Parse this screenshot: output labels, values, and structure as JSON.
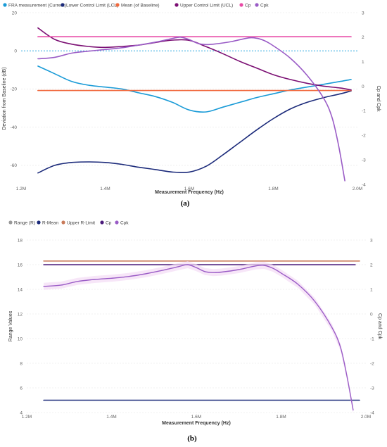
{
  "chart_data": [
    {
      "type": "line",
      "panel_label": "(a)",
      "legend": [
        "FRA measurement (Current)",
        "Lower Control Limit (LCL)",
        "Mean (of Baseline)",
        "Upper Control Limit (UCL)",
        "Cp",
        "Cpk"
      ],
      "xlabel": "Measurement Frequency (Hz)",
      "ylabel": "Deviation from Baseline (dB)",
      "y2label": "Cp and Cpk",
      "xlim": [
        1200000,
        2000000
      ],
      "ylim": [
        -70,
        20
      ],
      "y2lim": [
        -4,
        3
      ],
      "xticks": [
        {
          "v": 1200000,
          "label": "1.2M"
        },
        {
          "v": 1400000,
          "label": "1.4M"
        },
        {
          "v": 1600000,
          "label": "1.6M"
        },
        {
          "v": 1800000,
          "label": "1.8M"
        },
        {
          "v": 2000000,
          "label": "2.0M"
        }
      ],
      "yticks": [
        {
          "v": 20,
          "label": "20"
        },
        {
          "v": 0,
          "label": "0"
        },
        {
          "v": -20,
          "label": "-20"
        },
        {
          "v": -40,
          "label": "-40"
        },
        {
          "v": -60,
          "label": "-60"
        }
      ],
      "y2ticks": [
        {
          "v": 3,
          "label": "3"
        },
        {
          "v": 2,
          "label": "2"
        },
        {
          "v": 1,
          "label": "1"
        },
        {
          "v": 0,
          "label": "0"
        },
        {
          "v": -1,
          "label": "-1"
        },
        {
          "v": -2,
          "label": "-2"
        },
        {
          "v": -3,
          "label": "-3"
        },
        {
          "v": -4,
          "label": "-4"
        }
      ],
      "hline": {
        "y": 0,
        "color": "#2aa7e0",
        "style": "dotted"
      },
      "series": [
        {
          "name": "FRA measurement (Current)",
          "color": "#1a9bd7",
          "axis": "left",
          "x": [
            1240000,
            1280000,
            1320000,
            1360000,
            1400000,
            1440000,
            1480000,
            1520000,
            1560000,
            1600000,
            1640000,
            1680000,
            1720000,
            1760000,
            1800000,
            1840000,
            1880000,
            1920000,
            1960000,
            1985000
          ],
          "y": [
            -8,
            -12,
            -16,
            -18,
            -19,
            -20,
            -22,
            -24,
            -27,
            -31,
            -32,
            -29.5,
            -27,
            -24.5,
            -22.5,
            -20.5,
            -19,
            -17.5,
            -16,
            -15
          ]
        },
        {
          "name": "Lower Control Limit (LCL)",
          "color": "#1b2a7a",
          "axis": "left",
          "x": [
            1240000,
            1280000,
            1320000,
            1360000,
            1400000,
            1440000,
            1480000,
            1520000,
            1560000,
            1600000,
            1640000,
            1680000,
            1720000,
            1760000,
            1800000,
            1840000,
            1880000,
            1920000,
            1960000,
            1985000
          ],
          "y": [
            -64,
            -60,
            -58.5,
            -58.2,
            -58.5,
            -59.5,
            -61,
            -62.2,
            -63.5,
            -63.5,
            -60.5,
            -54.5,
            -48,
            -41.5,
            -35.5,
            -30.5,
            -27,
            -24.5,
            -22.5,
            -21
          ]
        },
        {
          "name": "Mean (of Baseline)",
          "color": "#f0693e",
          "axis": "left",
          "x": [
            1240000,
            1985000
          ],
          "y": [
            -20.8,
            -20.8
          ]
        },
        {
          "name": "Upper Control Limit (UCL)",
          "color": "#7b0f73",
          "axis": "left",
          "x": [
            1240000,
            1280000,
            1320000,
            1360000,
            1400000,
            1440000,
            1480000,
            1520000,
            1560000,
            1600000,
            1640000,
            1680000,
            1720000,
            1760000,
            1800000,
            1840000,
            1880000,
            1920000,
            1960000,
            1985000
          ],
          "y": [
            12,
            6,
            3.5,
            2.3,
            1.8,
            2.3,
            3,
            4.4,
            5.6,
            5.5,
            2.2,
            -1.5,
            -5.5,
            -9,
            -12.5,
            -15,
            -17,
            -18.5,
            -19.5,
            -20.5
          ]
        },
        {
          "name": "Cp",
          "color": "#e84aa6",
          "axis": "right",
          "x": [
            1240000,
            1985000
          ],
          "y": [
            2.02,
            2.02
          ]
        },
        {
          "name": "Cpk",
          "color": "#9a5cc6",
          "axis": "right",
          "x": [
            1240000,
            1280000,
            1320000,
            1360000,
            1400000,
            1440000,
            1480000,
            1520000,
            1560000,
            1580000,
            1600000,
            1620000,
            1640000,
            1660000,
            1700000,
            1740000,
            1760000,
            1780000,
            1800000,
            1840000,
            1880000,
            1920000,
            1940000,
            1955000,
            1970000
          ],
          "y": [
            1.12,
            1.18,
            1.35,
            1.43,
            1.5,
            1.57,
            1.68,
            1.8,
            1.95,
            2.0,
            1.9,
            1.75,
            1.7,
            1.72,
            1.82,
            1.97,
            1.96,
            1.85,
            1.65,
            1.15,
            0.45,
            -0.5,
            -1.3,
            -2.4,
            -3.85
          ]
        }
      ]
    },
    {
      "type": "line",
      "panel_label": "(b)",
      "legend": [
        "Range (R)",
        "R-Mean",
        "Upper R-Limit",
        "Cp",
        "Cpk"
      ],
      "xlabel": "Measurement Frequency (Hz)",
      "ylabel": "Range Values",
      "y2label": "Cp and Cpk",
      "xlim": [
        1200000,
        2000000
      ],
      "ylim": [
        4,
        18
      ],
      "y2lim": [
        -4,
        3
      ],
      "xticks": [
        {
          "v": 1200000,
          "label": "1.2M"
        },
        {
          "v": 1400000,
          "label": "1.4M"
        },
        {
          "v": 1600000,
          "label": "1.6M"
        },
        {
          "v": 1800000,
          "label": "1.8M"
        },
        {
          "v": 2000000,
          "label": "2.0M"
        }
      ],
      "yticks": [
        {
          "v": 18,
          "label": "18"
        },
        {
          "v": 16,
          "label": "16"
        },
        {
          "v": 14,
          "label": "14"
        },
        {
          "v": 12,
          "label": "12"
        },
        {
          "v": 10,
          "label": "10"
        },
        {
          "v": 8,
          "label": "8"
        },
        {
          "v": 6,
          "label": "6"
        },
        {
          "v": 4,
          "label": "4"
        }
      ],
      "y2ticks": [
        {
          "v": 3,
          "label": "3"
        },
        {
          "v": 2,
          "label": "2"
        },
        {
          "v": 1,
          "label": "1"
        },
        {
          "v": 0,
          "label": "0"
        },
        {
          "v": -1,
          "label": "-1"
        },
        {
          "v": -2,
          "label": "-2"
        },
        {
          "v": -3,
          "label": "-3"
        },
        {
          "v": -4,
          "label": "-4"
        }
      ],
      "series": [
        {
          "name": "Upper R-Limit",
          "color": "#c97b5a",
          "axis": "left",
          "x": [
            1240000,
            1985000
          ],
          "y": [
            16.3,
            16.3
          ]
        },
        {
          "name": "Cp",
          "color": "#4a1a7a",
          "axis": "right",
          "x": [
            1240000,
            1975000
          ],
          "y": [
            2.0,
            2.0
          ]
        },
        {
          "name": "R-Mean",
          "color": "#1b2a7a",
          "axis": "left",
          "x": [
            1240000,
            1985000
          ],
          "y": [
            5.0,
            5.0
          ]
        },
        {
          "name": "Cpk",
          "color": "#9a5cc6",
          "axis": "right",
          "band": true,
          "x": [
            1240000,
            1280000,
            1320000,
            1360000,
            1400000,
            1440000,
            1480000,
            1520000,
            1560000,
            1580000,
            1600000,
            1620000,
            1640000,
            1660000,
            1700000,
            1740000,
            1760000,
            1780000,
            1800000,
            1840000,
            1880000,
            1920000,
            1940000,
            1955000,
            1970000
          ],
          "y": [
            1.12,
            1.17,
            1.32,
            1.4,
            1.45,
            1.52,
            1.63,
            1.77,
            1.93,
            2.0,
            1.88,
            1.72,
            1.68,
            1.7,
            1.8,
            1.95,
            1.97,
            1.86,
            1.66,
            1.2,
            0.5,
            -0.55,
            -1.35,
            -2.5,
            -3.9
          ]
        }
      ]
    }
  ]
}
